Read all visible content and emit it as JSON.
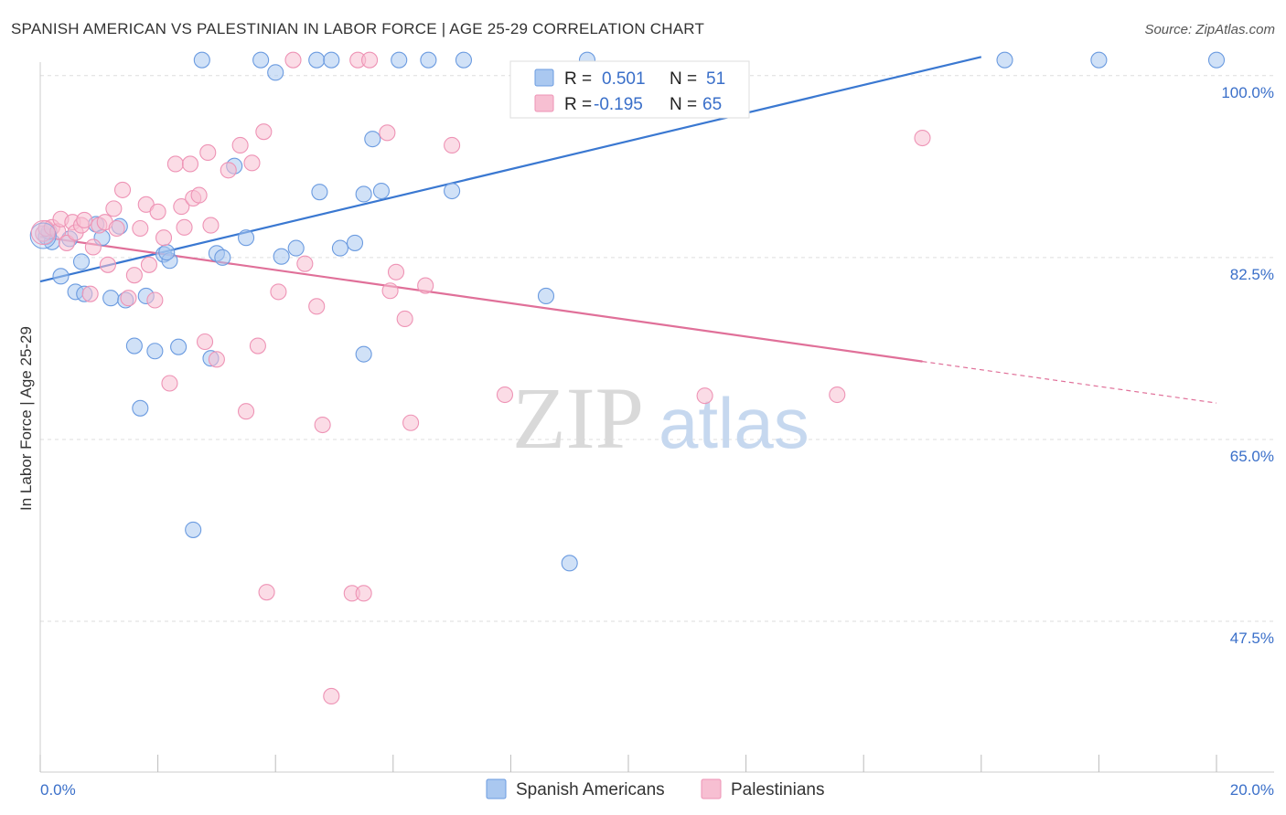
{
  "title": "SPANISH AMERICAN VS PALESTINIAN IN LABOR FORCE | AGE 25-29 CORRELATION CHART",
  "source": "Source: ZipAtlas.com",
  "watermark": {
    "zip": "ZIP",
    "atlas": "atlas"
  },
  "colors": {
    "blue": "#3a78d1",
    "blue_fill": "#aac8f0",
    "blue_stroke": "#6b9be0",
    "pink": "#e07099",
    "pink_fill": "#f7bfd2",
    "pink_stroke": "#ee93b5",
    "tick_label": "#3a6fc9",
    "grid": "#dddddd"
  },
  "legend_box": {
    "rows": [
      {
        "r_label": "R =",
        "r_value": "0.501",
        "n_label": "N =",
        "n_value": "51"
      },
      {
        "r_label": "R =",
        "r_value": "-0.195",
        "n_label": "N =",
        "n_value": "65"
      }
    ]
  },
  "chart_data": {
    "type": "scatter",
    "title": "SPANISH AMERICAN VS PALESTINIAN IN LABOR FORCE | AGE 25-29 CORRELATION CHART",
    "xlabel": "",
    "ylabel": "In Labor Force | Age 25-29",
    "xlim": [
      0,
      20
    ],
    "ylim": [
      33,
      102
    ],
    "x_tick_labels": [
      "0.0%",
      "20.0%"
    ],
    "y_ticks": [
      100.0,
      82.5,
      65.0,
      47.5
    ],
    "y_tick_labels": [
      "100.0%",
      "82.5%",
      "65.0%",
      "47.5%"
    ],
    "grid": true,
    "legend": "bottom-center",
    "series": [
      {
        "name": "Spanish Americans",
        "color": "#3a78d1",
        "trend": {
          "x": [
            0.0,
            16.0
          ],
          "y": [
            80.2,
            101.8
          ],
          "dashed_to": null
        },
        "points": [
          [
            0.1,
            84.5
          ],
          [
            0.2,
            84.0
          ],
          [
            0.35,
            80.7
          ],
          [
            0.5,
            84.3
          ],
          [
            0.6,
            79.2
          ],
          [
            0.7,
            82.1
          ],
          [
            0.75,
            79.0
          ],
          [
            0.95,
            85.7
          ],
          [
            1.05,
            84.4
          ],
          [
            1.2,
            78.6
          ],
          [
            1.35,
            85.5
          ],
          [
            1.45,
            78.4
          ],
          [
            1.6,
            74.0
          ],
          [
            1.7,
            68.0
          ],
          [
            1.8,
            78.8
          ],
          [
            1.95,
            73.5
          ],
          [
            2.1,
            82.8
          ],
          [
            2.2,
            82.2
          ],
          [
            2.35,
            73.9
          ],
          [
            2.6,
            56.3
          ],
          [
            2.75,
            101.5
          ],
          [
            2.9,
            72.8
          ],
          [
            3.0,
            82.9
          ],
          [
            3.1,
            82.5
          ],
          [
            3.3,
            91.3
          ],
          [
            3.5,
            84.4
          ],
          [
            3.75,
            101.5
          ],
          [
            4.0,
            100.3
          ],
          [
            4.1,
            82.6
          ],
          [
            4.35,
            83.4
          ],
          [
            4.7,
            101.5
          ],
          [
            4.75,
            88.8
          ],
          [
            5.1,
            83.4
          ],
          [
            5.35,
            83.9
          ],
          [
            5.5,
            88.6
          ],
          [
            5.5,
            73.2
          ],
          [
            5.65,
            93.9
          ],
          [
            5.8,
            88.9
          ],
          [
            6.1,
            101.5
          ],
          [
            7.0,
            88.9
          ],
          [
            7.2,
            101.5
          ],
          [
            8.6,
            78.8
          ],
          [
            9.0,
            53.1
          ],
          [
            16.4,
            101.5
          ],
          [
            20.0,
            101.5
          ],
          [
            9.3,
            101.5
          ],
          [
            18.0,
            101.5
          ],
          [
            2.15,
            83.0
          ],
          [
            6.6,
            101.5
          ],
          [
            4.95,
            101.5
          ],
          [
            0.15,
            85.0
          ]
        ]
      },
      {
        "name": "Palestinians",
        "color": "#e07099",
        "trend": {
          "x": [
            0.0,
            15.0
          ],
          "y": [
            84.5,
            72.5
          ],
          "dashed_to": [
            20.0,
            68.5
          ]
        },
        "points": [
          [
            0.05,
            84.8
          ],
          [
            0.1,
            85.3
          ],
          [
            0.2,
            85.4
          ],
          [
            0.3,
            85.0
          ],
          [
            0.35,
            86.2
          ],
          [
            0.45,
            83.9
          ],
          [
            0.55,
            85.9
          ],
          [
            0.6,
            84.9
          ],
          [
            0.7,
            85.6
          ],
          [
            0.75,
            86.1
          ],
          [
            0.85,
            79.0
          ],
          [
            0.9,
            83.5
          ],
          [
            1.0,
            85.6
          ],
          [
            1.1,
            85.9
          ],
          [
            1.15,
            81.8
          ],
          [
            1.25,
            87.2
          ],
          [
            1.3,
            85.3
          ],
          [
            1.4,
            89.0
          ],
          [
            1.5,
            78.6
          ],
          [
            1.6,
            80.8
          ],
          [
            1.7,
            85.3
          ],
          [
            1.8,
            87.6
          ],
          [
            1.85,
            81.8
          ],
          [
            1.95,
            78.4
          ],
          [
            2.0,
            86.9
          ],
          [
            2.1,
            84.4
          ],
          [
            2.2,
            70.4
          ],
          [
            2.3,
            91.5
          ],
          [
            2.4,
            87.4
          ],
          [
            2.45,
            85.4
          ],
          [
            2.55,
            91.5
          ],
          [
            2.6,
            88.2
          ],
          [
            2.7,
            88.5
          ],
          [
            2.8,
            74.4
          ],
          [
            2.85,
            92.6
          ],
          [
            2.9,
            85.6
          ],
          [
            3.0,
            72.7
          ],
          [
            3.2,
            90.9
          ],
          [
            3.4,
            93.3
          ],
          [
            3.5,
            67.7
          ],
          [
            3.6,
            91.6
          ],
          [
            3.7,
            74.0
          ],
          [
            3.8,
            94.6
          ],
          [
            3.85,
            50.3
          ],
          [
            4.05,
            79.2
          ],
          [
            4.3,
            101.5
          ],
          [
            4.5,
            81.9
          ],
          [
            4.7,
            77.8
          ],
          [
            4.8,
            66.4
          ],
          [
            4.95,
            40.3
          ],
          [
            5.3,
            50.2
          ],
          [
            5.5,
            50.2
          ],
          [
            5.4,
            101.5
          ],
          [
            5.6,
            101.5
          ],
          [
            5.9,
            94.5
          ],
          [
            5.95,
            79.3
          ],
          [
            6.05,
            81.1
          ],
          [
            6.2,
            76.6
          ],
          [
            6.3,
            66.6
          ],
          [
            6.55,
            79.8
          ],
          [
            7.0,
            93.3
          ],
          [
            7.9,
            69.3
          ],
          [
            11.3,
            69.2
          ],
          [
            13.55,
            69.3
          ],
          [
            15.0,
            94.0
          ]
        ]
      }
    ]
  }
}
